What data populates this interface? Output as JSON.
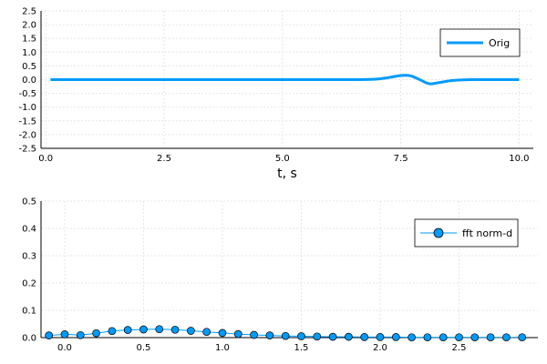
{
  "chart_data": [
    {
      "type": "line",
      "xlabel": "t, s",
      "ylabel": "",
      "xlim": [
        -0.1,
        10.3
      ],
      "ylim": [
        -2.5,
        2.5
      ],
      "xticks": [
        0.0,
        2.5,
        5.0,
        7.5,
        10.0
      ],
      "xtick_labels": [
        "0.0",
        "2.5",
        "5.0",
        "7.5",
        "10.0"
      ],
      "yticks": [
        2.5,
        2.0,
        1.5,
        1.0,
        0.5,
        0.0,
        -0.5,
        -1.0,
        -1.5,
        -2.0,
        -2.5
      ],
      "ytick_labels": [
        "2.5",
        "2.0",
        "1.5",
        "1.0",
        "0.5",
        "0.0",
        "-0.5",
        "-1.0",
        "-1.5",
        "-2.0",
        "-2.5"
      ],
      "grid": true,
      "legend_position": "top-right",
      "series": [
        {
          "name": "Orig",
          "color": "#009af9",
          "x": [
            0.1,
            1,
            2,
            3,
            4,
            5,
            6,
            6.6,
            7.0,
            7.3,
            7.5,
            7.7,
            7.9,
            8.1,
            8.3,
            8.6,
            9.0,
            10.0
          ],
          "y": [
            0.0,
            0.0,
            0.0,
            0.0,
            0.0,
            0.0,
            0.0,
            0.0,
            0.02,
            0.09,
            0.15,
            0.14,
            0.0,
            -0.15,
            -0.11,
            -0.03,
            0.0,
            0.0
          ]
        }
      ]
    },
    {
      "type": "scatter",
      "xlabel": "",
      "ylabel": "",
      "xlim": [
        -0.15,
        3.0
      ],
      "ylim": [
        0.0,
        0.5
      ],
      "xticks": [
        0.0,
        0.5,
        1.0,
        1.5,
        2.0,
        2.5
      ],
      "xtick_labels": [
        "0.0",
        "0.5",
        "1.0",
        "1.5",
        "2.0",
        "2.5"
      ],
      "yticks": [
        0.5,
        0.4,
        0.3,
        0.2,
        0.1,
        0.0
      ],
      "ytick_labels": [
        "0.5",
        "0.4",
        "0.3",
        "0.2",
        "0.1",
        "0.0"
      ],
      "grid": true,
      "legend_position": "top-right",
      "series": [
        {
          "name": "fft norm-d",
          "color": "#009af9",
          "x": [
            -0.1,
            0.0,
            0.1,
            0.2,
            0.3,
            0.4,
            0.5,
            0.6,
            0.7,
            0.8,
            0.9,
            1.0,
            1.1,
            1.2,
            1.3,
            1.4,
            1.5,
            1.6,
            1.7,
            1.8,
            1.9,
            2.0,
            2.1,
            2.2,
            2.3,
            2.4,
            2.5,
            2.6,
            2.7,
            2.8,
            2.9
          ],
          "y": [
            0.008,
            0.012,
            0.009,
            0.016,
            0.024,
            0.028,
            0.03,
            0.031,
            0.029,
            0.025,
            0.021,
            0.017,
            0.013,
            0.01,
            0.008,
            0.006,
            0.005,
            0.004,
            0.003,
            0.003,
            0.002,
            0.002,
            0.002,
            0.001,
            0.001,
            0.001,
            0.001,
            0.001,
            0.001,
            0.001,
            0.001
          ]
        }
      ]
    }
  ]
}
